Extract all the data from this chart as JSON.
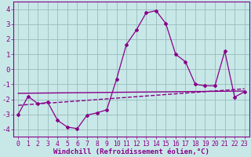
{
  "xlabel": "Windchill (Refroidissement éolien,°C)",
  "bg_color": "#c8e8e8",
  "line_color": "#880088",
  "grid_color": "#99bbbb",
  "xlim": [
    -0.5,
    23.5
  ],
  "ylim": [
    -4.5,
    4.5
  ],
  "yticks": [
    -4,
    -3,
    -2,
    -1,
    0,
    1,
    2,
    3,
    4
  ],
  "xticks": [
    0,
    1,
    2,
    3,
    4,
    5,
    6,
    7,
    8,
    9,
    10,
    11,
    12,
    13,
    14,
    15,
    16,
    17,
    18,
    19,
    20,
    21,
    22,
    23
  ],
  "line1_x": [
    0,
    1,
    2,
    3,
    4,
    5,
    6,
    7,
    8,
    9,
    10,
    11,
    12,
    13,
    14,
    15,
    16,
    17,
    18,
    19,
    20,
    21,
    22,
    23
  ],
  "line1_y": [
    -3.0,
    -1.8,
    -2.3,
    -2.2,
    -3.4,
    -3.85,
    -3.95,
    -3.05,
    -2.9,
    -2.7,
    -0.65,
    1.65,
    2.6,
    3.75,
    3.9,
    3.05,
    1.0,
    0.5,
    -1.0,
    -1.1,
    -1.1,
    1.2,
    -1.85,
    -1.5
  ],
  "line2_x": [
    0,
    23
  ],
  "line2_y": [
    -2.4,
    -1.3
  ],
  "line3_x": [
    0,
    23
  ],
  "line3_y": [
    -1.6,
    -1.45
  ],
  "xlabel_fontsize": 6.5,
  "tick_fontsize": 5.8,
  "ytick_fontsize": 6.5
}
